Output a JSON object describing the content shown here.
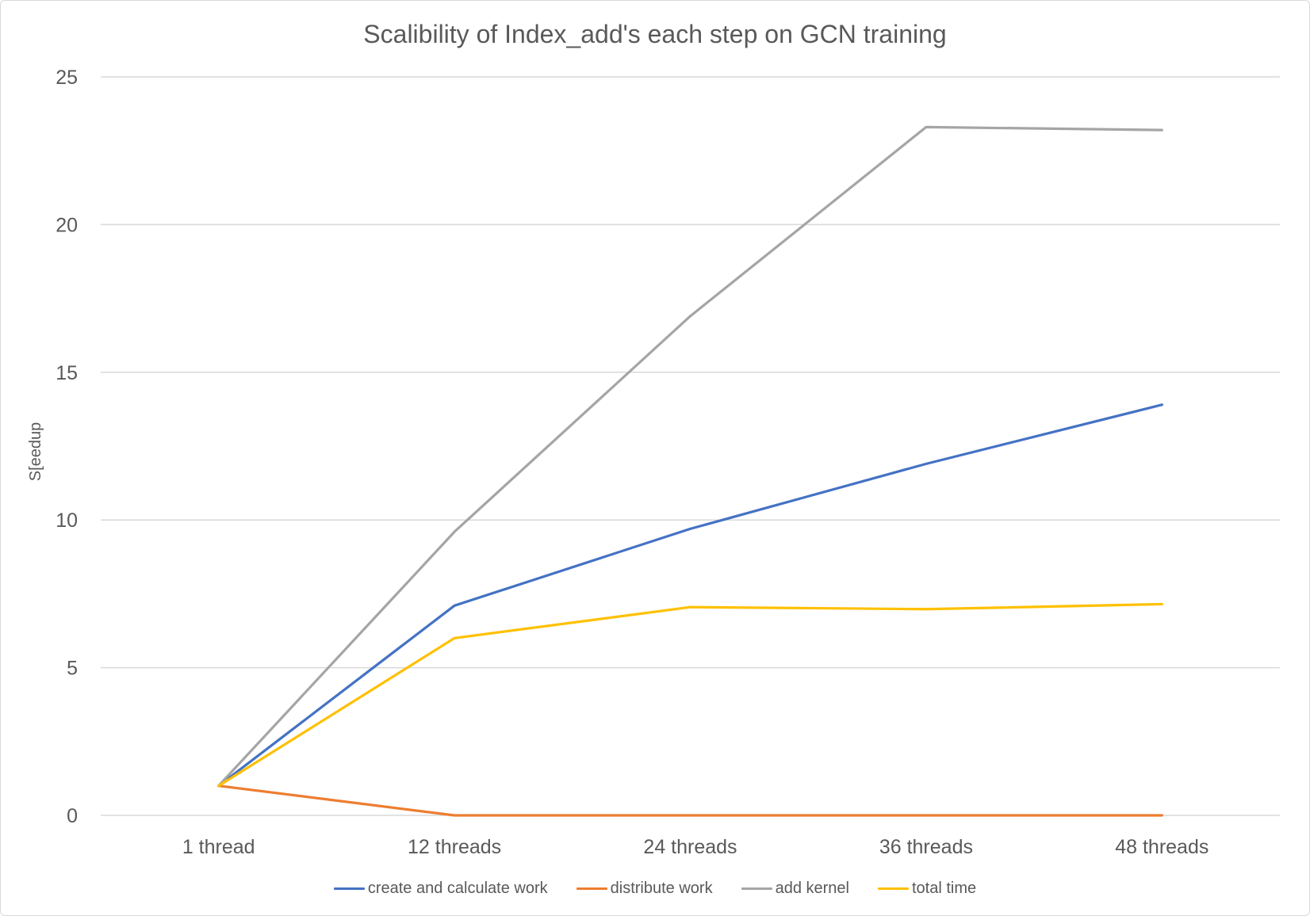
{
  "chart_data": {
    "type": "line",
    "title": "Scalibility of Index_add's each step on GCN training",
    "ylabel": "S[eedup",
    "categories": [
      "1 thread",
      "12 threads",
      "24 threads",
      "36 threads",
      "48 threads"
    ],
    "ylim": [
      0,
      25
    ],
    "yticks": [
      0,
      5,
      10,
      15,
      20,
      25
    ],
    "grid": "horizontal",
    "legend": "bottom",
    "series": [
      {
        "name": "create and calculate work",
        "color": "#4472C4",
        "values": [
          1,
          7.1,
          9.7,
          11.9,
          13.9
        ]
      },
      {
        "name": "distribute work",
        "color": "#ED7D31",
        "values": [
          1,
          0,
          0,
          0,
          0
        ]
      },
      {
        "name": "add kernel",
        "color": "#A5A5A5",
        "values": [
          1,
          9.6,
          16.9,
          23.3,
          23.2
        ]
      },
      {
        "name": "total time",
        "color": "#FFC000",
        "values": [
          1,
          6.0,
          7.05,
          6.98,
          7.15
        ]
      }
    ]
  },
  "colors": {
    "text": "#595959",
    "grid": "#D9D9D9",
    "background": "#FFFFFF"
  }
}
